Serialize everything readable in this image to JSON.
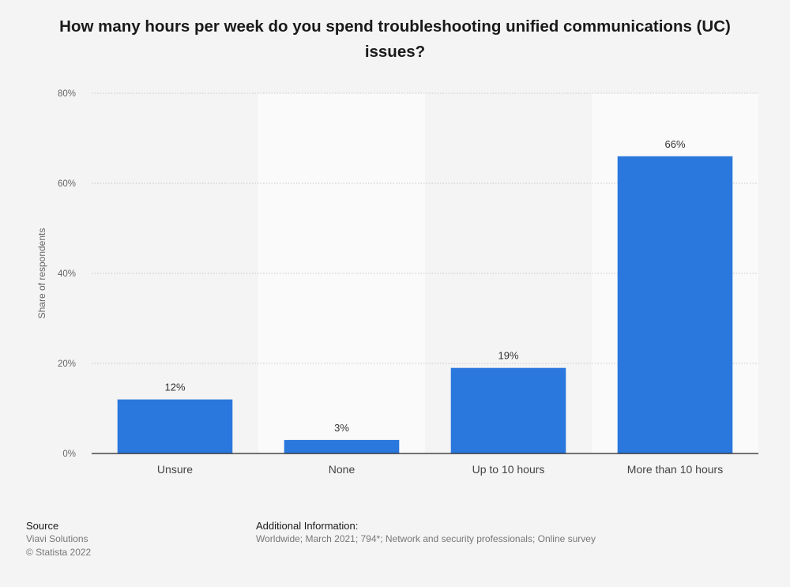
{
  "chart_data": {
    "type": "bar",
    "title": "How many hours per week do you spend troubleshooting unified communications (UC) issues?",
    "categories": [
      "Unsure",
      "None",
      "Up to 10 hours",
      "More than 10 hours"
    ],
    "values": [
      12,
      3,
      19,
      66
    ],
    "value_labels": [
      "12%",
      "3%",
      "19%",
      "66%"
    ],
    "xlabel": "",
    "ylabel": "Share of respondents",
    "ylim": [
      0,
      80
    ],
    "yticks": [
      0,
      20,
      40,
      60,
      80
    ],
    "ytick_labels": [
      "0%",
      "20%",
      "40%",
      "60%",
      "80%"
    ],
    "grid": true,
    "bar_color": "#2a77dd"
  },
  "footer": {
    "source_heading": "Source",
    "source_name": "Viavi Solutions",
    "copyright": "© Statista 2022",
    "info_heading": "Additional Information:",
    "info_text": "Worldwide; March 2021; 794*; Network and security professionals; Online survey"
  }
}
